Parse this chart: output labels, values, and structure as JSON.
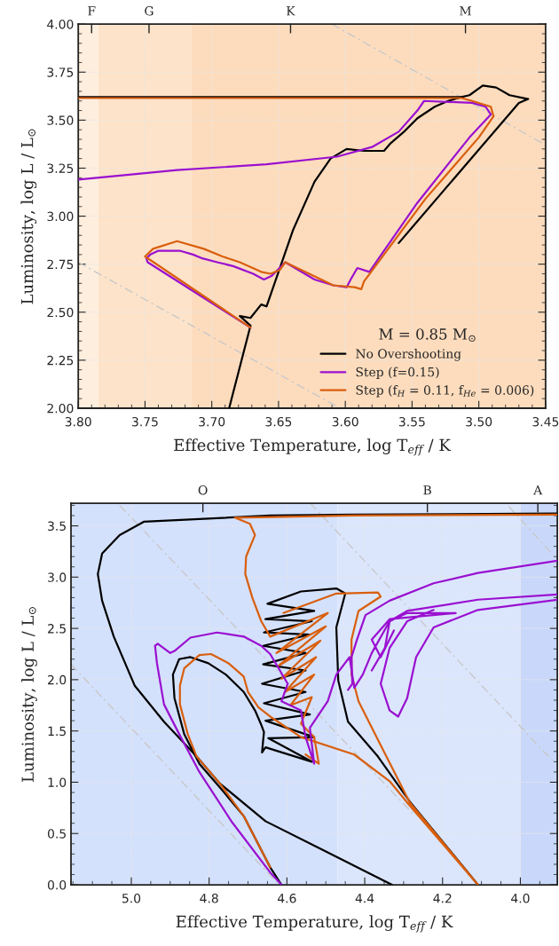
{
  "chart_data": [
    {
      "type": "line",
      "xlabel": "Effective Temperature, log T$_{eff}$ / K",
      "ylabel": "Luminosity, log L / L$_{⊙}$",
      "legend_title": "M = 0.85 M$_{⊙}$",
      "legend": "bottom right",
      "grid": true,
      "xlim": [
        3.8,
        3.45
      ],
      "ylim": [
        2.0,
        4.0
      ],
      "xticks": [
        {
          "value": 3.8,
          "label": "3.80"
        },
        {
          "value": 3.75,
          "label": "3.75"
        },
        {
          "value": 3.7,
          "label": "3.70"
        },
        {
          "value": 3.65,
          "label": "3.65"
        },
        {
          "value": 3.6,
          "label": "3.60"
        },
        {
          "value": 3.55,
          "label": "3.55"
        },
        {
          "value": 3.5,
          "label": "3.50"
        },
        {
          "value": 3.45,
          "label": "3.45"
        }
      ],
      "yticks": [
        {
          "value": 2.0,
          "label": "2.00"
        },
        {
          "value": 2.25,
          "label": "2.25"
        },
        {
          "value": 2.5,
          "label": "2.50"
        },
        {
          "value": 2.75,
          "label": "2.75"
        },
        {
          "value": 3.0,
          "label": "3.00"
        },
        {
          "value": 3.25,
          "label": "3.25"
        },
        {
          "value": 3.5,
          "label": "3.50"
        },
        {
          "value": 3.75,
          "label": "3.75"
        },
        {
          "value": 4.0,
          "label": "4.00"
        }
      ],
      "annotations": [
        {
          "text": "F",
          "x": 3.79,
          "y": 4.0
        },
        {
          "text": "G",
          "x": 3.747,
          "y": 4.0
        },
        {
          "text": "K",
          "x": 3.641,
          "y": 4.0
        },
        {
          "text": "M",
          "x": 3.51,
          "y": 4.0
        }
      ],
      "bands": [
        {
          "axis": "x",
          "from": 3.8,
          "to": 3.785,
          "color": "#feeede"
        },
        {
          "axis": "x",
          "from": 3.785,
          "to": 3.715,
          "color": "#fde3c9"
        },
        {
          "axis": "x",
          "from": 3.715,
          "to": 3.45,
          "color": "#fddcbd"
        }
      ],
      "series": [
        {
          "color": "#c8c8c8",
          "line_style": "dashed",
          "x": [
            3.8,
            3.604
          ],
          "values": [
            2.76,
            2.0
          ]
        },
        {
          "color": "#c8c8c8",
          "line_style": "dashed",
          "x": [
            3.61,
            3.45
          ],
          "values": [
            4.0,
            3.37
          ]
        },
        {
          "name": "No Overshooting",
          "color": "#000000",
          "x": [
            3.687,
            3.671,
            3.679,
            3.671,
            3.663,
            3.659,
            3.639,
            3.623,
            3.611,
            3.599,
            3.586,
            3.571,
            3.566,
            3.556,
            3.546,
            3.533,
            3.523,
            3.513,
            3.507,
            3.497,
            3.487,
            3.477,
            3.463,
            3.47,
            3.56
          ],
          "values": [
            2.0,
            2.43,
            2.48,
            2.47,
            2.54,
            2.53,
            2.93,
            3.18,
            3.3,
            3.35,
            3.34,
            3.34,
            3.38,
            3.44,
            3.51,
            3.57,
            3.6,
            3.62,
            3.63,
            3.68,
            3.67,
            3.63,
            3.61,
            3.59,
            2.86
          ]
        },
        {
          "color": "#000000",
          "x": [
            3.513,
            3.8
          ],
          "values": [
            3.62,
            3.62
          ]
        },
        {
          "name": "Step (f=0.15)",
          "color": "#9a10d0",
          "x": [
            3.671,
            3.748,
            3.749,
            3.746,
            3.74,
            3.724,
            3.714,
            3.707,
            3.696,
            3.684,
            3.669,
            3.661,
            3.655,
            3.645,
            3.623,
            3.609,
            3.599,
            3.596,
            3.591,
            3.582,
            3.546,
            3.507,
            3.491,
            3.495,
            3.505,
            3.541,
            3.546,
            3.56,
            3.58,
            3.606,
            3.659,
            3.726,
            3.8
          ],
          "values": [
            2.42,
            2.76,
            2.78,
            2.8,
            2.82,
            2.82,
            2.8,
            2.78,
            2.76,
            2.74,
            2.7,
            2.67,
            2.69,
            2.76,
            2.67,
            2.64,
            2.63,
            2.67,
            2.73,
            2.71,
            3.07,
            3.41,
            3.53,
            3.57,
            3.59,
            3.6,
            3.55,
            3.44,
            3.36,
            3.31,
            3.27,
            3.24,
            3.19
          ]
        },
        {
          "name": "Step (f$_{H}$ = 0.11, f$_{He}$ = 0.006)",
          "color": "#d95f0e",
          "x": [
            3.671,
            3.75,
            3.744,
            3.726,
            3.706,
            3.692,
            3.679,
            3.663,
            3.656,
            3.649,
            3.645,
            3.609,
            3.593,
            3.588,
            3.586,
            3.54,
            3.5,
            3.489,
            3.491,
            3.505,
            3.513,
            3.8
          ],
          "values": [
            2.42,
            2.79,
            2.83,
            2.87,
            2.83,
            2.79,
            2.76,
            2.71,
            2.7,
            2.72,
            2.76,
            2.64,
            2.63,
            2.62,
            2.66,
            3.09,
            3.41,
            3.52,
            3.57,
            3.6,
            3.615,
            3.615
          ]
        }
      ]
    },
    {
      "type": "line",
      "xlabel": "Effective Temperature, log T$_{eff}$ / K",
      "ylabel": "Luminosity, log L / L$_{⊙}$",
      "grid": true,
      "xlim": [
        5.155,
        3.905
      ],
      "ylim": [
        0.0,
        3.72
      ],
      "xticks": [
        {
          "value": 5.0,
          "label": "5.0"
        },
        {
          "value": 4.8,
          "label": "4.8"
        },
        {
          "value": 4.6,
          "label": "4.6"
        },
        {
          "value": 4.4,
          "label": "4.4"
        },
        {
          "value": 4.2,
          "label": "4.2"
        },
        {
          "value": 4.0,
          "label": "4.0"
        }
      ],
      "yticks": [
        {
          "value": 0.0,
          "label": "0.0"
        },
        {
          "value": 0.5,
          "label": "0.5"
        },
        {
          "value": 1.0,
          "label": "1.0"
        },
        {
          "value": 1.5,
          "label": "1.5"
        },
        {
          "value": 2.0,
          "label": "2.0"
        },
        {
          "value": 2.5,
          "label": "2.5"
        },
        {
          "value": 3.0,
          "label": "3.0"
        },
        {
          "value": 3.5,
          "label": "3.5"
        }
      ],
      "annotations": [
        {
          "text": "O",
          "x": 4.816,
          "y": 3.72
        },
        {
          "text": "B",
          "x": 4.239,
          "y": 3.72
        },
        {
          "text": "A",
          "x": 3.955,
          "y": 3.72
        }
      ],
      "bands": [
        {
          "axis": "x",
          "from": 5.155,
          "to": 4.47,
          "color": "#d4e1fc"
        },
        {
          "axis": "x",
          "from": 4.47,
          "to": 4.0,
          "color": "#dbe6fd"
        },
        {
          "axis": "x",
          "from": 4.0,
          "to": 3.905,
          "color": "#c9d8fa"
        }
      ],
      "series": [
        {
          "color": "#c8c8c8",
          "line_style": "dashed",
          "x": [
            5.03,
            4.27
          ],
          "values": [
            3.7,
            0.67
          ]
        },
        {
          "color": "#c8c8c8",
          "line_style": "dashed",
          "x": [
            5.155,
            4.62
          ],
          "values": [
            2.15,
            0.0
          ]
        },
        {
          "color": "#c8c8c8",
          "line_style": "dashed",
          "x": [
            4.54,
            3.91
          ],
          "values": [
            3.72,
            1.18
          ]
        },
        {
          "color": "#c8c8c8",
          "line_style": "dashed",
          "x": [
            4.03,
            3.905
          ],
          "values": [
            3.69,
            3.17
          ]
        },
        {
          "color": "#000000",
          "x": [
            3.905,
            4.427,
            4.643,
            4.968,
            5.03,
            5.075,
            5.086,
            5.075,
            5.045,
            4.991,
            4.916,
            4.832,
            4.773,
            4.655,
            4.518,
            4.33
          ],
          "values": [
            3.62,
            3.61,
            3.6,
            3.54,
            3.41,
            3.23,
            3.03,
            2.77,
            2.42,
            1.94,
            1.59,
            1.25,
            0.99,
            0.62,
            0.36,
            0.0
          ]
        },
        {
          "color": "#000000",
          "x": [
            4.109,
            4.284,
            4.366,
            4.443,
            4.468,
            4.473,
            4.45,
            4.473,
            4.564,
            4.65,
            4.53,
            4.655,
            4.536,
            4.659,
            4.541,
            4.661,
            4.552,
            4.661,
            4.552,
            4.664,
            4.552,
            4.659,
            4.541,
            4.655,
            4.53,
            4.648,
            4.536,
            4.655,
            4.664,
            4.659,
            4.666,
            4.682,
            4.711,
            4.757,
            4.802,
            4.848,
            4.877,
            4.893,
            4.889,
            4.864,
            4.825,
            4.768,
            4.711,
            4.643,
            4.614
          ],
          "values": [
            0.0,
            0.81,
            1.25,
            1.59,
            1.99,
            2.51,
            2.84,
            2.89,
            2.86,
            2.74,
            2.67,
            2.59,
            2.57,
            2.46,
            2.44,
            2.33,
            2.26,
            2.15,
            2.09,
            1.96,
            1.88,
            1.77,
            1.66,
            1.6,
            1.44,
            1.43,
            1.2,
            1.34,
            1.29,
            1.49,
            1.56,
            1.7,
            1.88,
            2.05,
            2.16,
            2.22,
            2.2,
            2.05,
            1.82,
            1.47,
            1.18,
            0.93,
            0.67,
            0.17,
            0.0
          ]
        },
        {
          "color": "#d95f0e",
          "x": [
            3.905,
            4.427,
            4.734,
            4.695,
            4.682,
            4.705,
            4.707,
            4.689,
            4.666,
            4.643,
            4.495,
            4.627,
            4.5,
            4.62,
            4.514,
            4.614,
            4.525,
            4.605,
            4.53,
            4.591,
            4.536,
            4.564,
            4.53,
            4.518,
            4.552
          ],
          "values": [
            3.61,
            3.6,
            3.58,
            3.52,
            3.41,
            3.2,
            3.03,
            2.8,
            2.57,
            2.42,
            2.65,
            2.26,
            2.52,
            2.14,
            2.38,
            2.01,
            2.22,
            1.88,
            2.05,
            1.75,
            1.83,
            1.57,
            1.44,
            1.18,
            1.27
          ]
        },
        {
          "color": "#d95f0e",
          "x": [
            4.609,
            4.473,
            4.366,
            4.359,
            4.416,
            4.434,
            4.434,
            4.416,
            4.359,
            4.284,
            4.109,
            4.284,
            4.336,
            4.427,
            4.564,
            4.643,
            4.673,
            4.7,
            4.711,
            4.75,
            4.795,
            4.825,
            4.864,
            4.875,
            4.875,
            4.855,
            4.832,
            4.773,
            4.711,
            4.643
          ],
          "values": [
            2.65,
            2.84,
            2.85,
            2.81,
            2.67,
            2.39,
            2.05,
            1.79,
            1.36,
            0.8,
            0.0,
            0.77,
            1.01,
            1.27,
            1.44,
            1.64,
            1.73,
            1.88,
            2.03,
            2.16,
            2.25,
            2.24,
            2.11,
            1.94,
            1.76,
            1.47,
            1.25,
            0.99,
            0.67,
            0.17
          ]
        },
        {
          "color": "#9a10d0",
          "x": [
            4.614,
            4.643,
            4.741,
            4.825,
            4.877,
            4.916,
            4.934,
            4.939,
            4.932,
            4.9,
            4.889,
            4.848,
            4.78,
            4.711,
            4.666,
            4.643,
            4.598,
            4.614,
            4.564,
            4.552,
            4.53,
            4.541,
            4.495,
            4.473,
            4.439,
            4.427,
            4.405,
            4.382,
            4.336,
            4.291,
            4.166,
            4.336,
            4.382,
            4.359,
            4.325
          ],
          "values": [
            0.0,
            0.12,
            0.61,
            1.1,
            1.47,
            1.76,
            2.16,
            2.33,
            2.35,
            2.26,
            2.28,
            2.41,
            2.46,
            2.42,
            2.33,
            2.25,
            1.96,
            1.79,
            1.7,
            1.44,
            1.18,
            1.53,
            1.79,
            2.05,
            2.22,
            1.92,
            2.05,
            2.26,
            2.57,
            2.65,
            2.65,
            2.59,
            2.39,
            2.22,
            2.48
          ]
        },
        {
          "color": "#9a10d0",
          "x": [
            3.905,
            4.109,
            4.223,
            4.336,
            4.398,
            4.42,
            4.434,
            4.432,
            4.443
          ],
          "values": [
            3.16,
            3.04,
            2.94,
            2.77,
            2.63,
            2.39,
            2.22,
            1.96,
            1.9
          ]
        },
        {
          "color": "#9a10d0",
          "x": [
            3.905,
            4.109,
            4.291,
            4.336,
            4.348,
            4.382
          ],
          "values": [
            2.83,
            2.78,
            2.67,
            2.57,
            2.31,
            2.09
          ]
        },
        {
          "color": "#9a10d0",
          "x": [
            3.905,
            4.109,
            4.223,
            4.268,
            4.291,
            4.314,
            4.336,
            4.359,
            4.336,
            4.291,
            4.223
          ],
          "values": [
            2.78,
            2.68,
            2.51,
            2.22,
            1.82,
            1.64,
            1.7,
            1.96,
            2.31,
            2.57,
            2.68
          ]
        }
      ]
    }
  ]
}
